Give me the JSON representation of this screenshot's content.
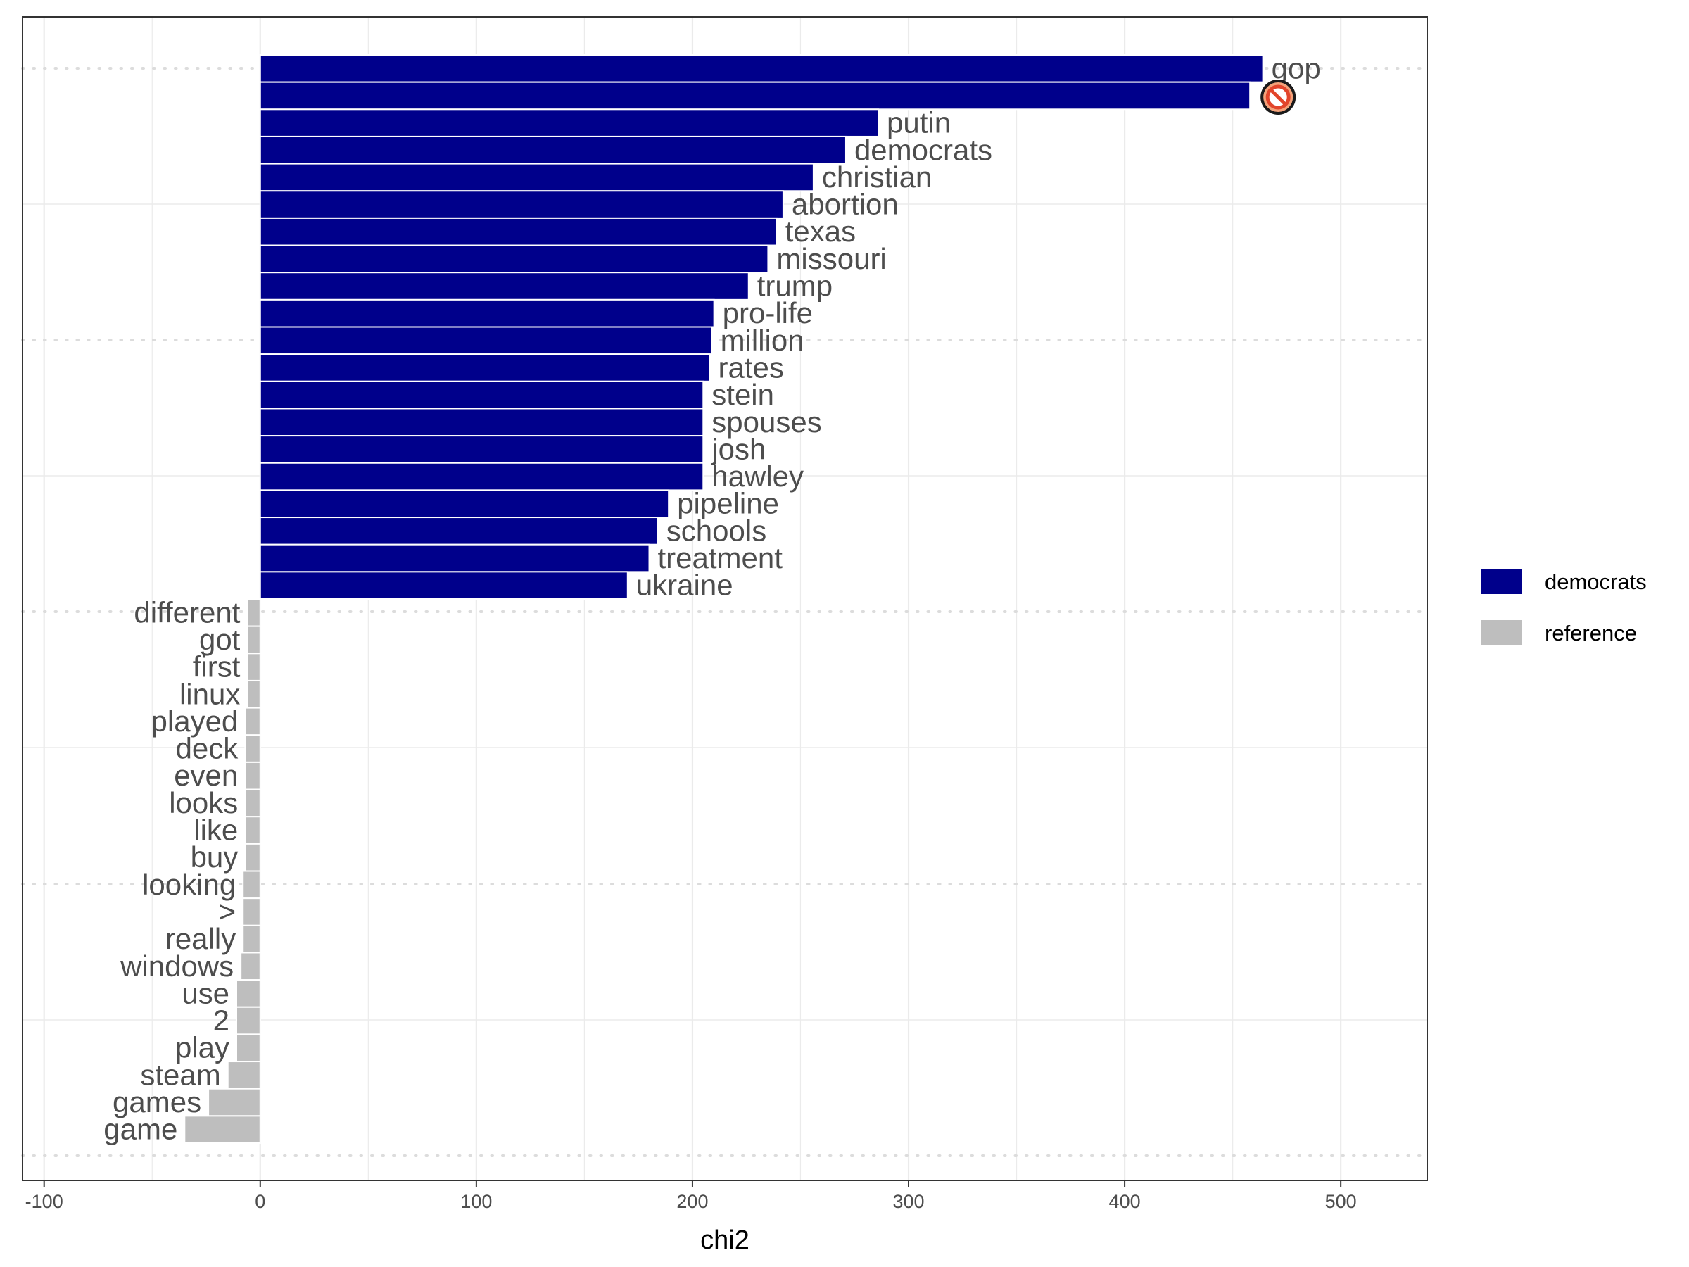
{
  "chart_data": {
    "type": "bar",
    "orientation": "horizontal",
    "xlabel": "chi2",
    "ylabel": "",
    "xlim": [
      -110,
      540
    ],
    "xticks": [
      -100,
      0,
      100,
      200,
      300,
      400,
      500
    ],
    "xtick_labels": [
      "-100",
      "0",
      "100",
      "200",
      "300",
      "400",
      "500"
    ],
    "grid": true,
    "legend_position": "right",
    "colors": {
      "democrats": "#00008B",
      "reference": "#BEBEBE"
    },
    "series": [
      {
        "name": "democrats",
        "color": "#00008B"
      },
      {
        "name": "reference",
        "color": "#BEBEBE"
      }
    ],
    "bars": [
      {
        "term": "gop",
        "value": 464,
        "group": "democrats"
      },
      {
        "term": "",
        "value": 458,
        "group": "democrats",
        "icon": "prohibited-icon"
      },
      {
        "term": "putin",
        "value": 286,
        "group": "democrats"
      },
      {
        "term": "democrats",
        "value": 271,
        "group": "democrats"
      },
      {
        "term": "christian",
        "value": 256,
        "group": "democrats"
      },
      {
        "term": "abortion",
        "value": 242,
        "group": "democrats"
      },
      {
        "term": "texas",
        "value": 239,
        "group": "democrats"
      },
      {
        "term": "missouri",
        "value": 235,
        "group": "democrats"
      },
      {
        "term": "trump",
        "value": 226,
        "group": "democrats"
      },
      {
        "term": "pro-life",
        "value": 210,
        "group": "democrats"
      },
      {
        "term": "million",
        "value": 209,
        "group": "democrats"
      },
      {
        "term": "rates",
        "value": 208,
        "group": "democrats"
      },
      {
        "term": "stein",
        "value": 205,
        "group": "democrats"
      },
      {
        "term": "spouses",
        "value": 205,
        "group": "democrats"
      },
      {
        "term": "josh",
        "value": 205,
        "group": "democrats"
      },
      {
        "term": "hawley",
        "value": 205,
        "group": "democrats"
      },
      {
        "term": "pipeline",
        "value": 189,
        "group": "democrats"
      },
      {
        "term": "schools",
        "value": 184,
        "group": "democrats"
      },
      {
        "term": "treatment",
        "value": 180,
        "group": "democrats"
      },
      {
        "term": "ukraine",
        "value": 170,
        "group": "democrats"
      },
      {
        "term": "different",
        "value": -6,
        "group": "reference"
      },
      {
        "term": "got",
        "value": -6,
        "group": "reference"
      },
      {
        "term": "first",
        "value": -6,
        "group": "reference"
      },
      {
        "term": "linux",
        "value": -6,
        "group": "reference"
      },
      {
        "term": "played",
        "value": -7,
        "group": "reference"
      },
      {
        "term": "deck",
        "value": -7,
        "group": "reference"
      },
      {
        "term": "even",
        "value": -7,
        "group": "reference"
      },
      {
        "term": "looks",
        "value": -7,
        "group": "reference"
      },
      {
        "term": "like",
        "value": -7,
        "group": "reference"
      },
      {
        "term": "buy",
        "value": -7,
        "group": "reference"
      },
      {
        "term": "looking",
        "value": -8,
        "group": "reference"
      },
      {
        "term": ">",
        "value": -8,
        "group": "reference"
      },
      {
        "term": "really",
        "value": -8,
        "group": "reference"
      },
      {
        "term": "windows",
        "value": -9,
        "group": "reference"
      },
      {
        "term": "use",
        "value": -11,
        "group": "reference"
      },
      {
        "term": "2",
        "value": -11,
        "group": "reference"
      },
      {
        "term": "play",
        "value": -11,
        "group": "reference"
      },
      {
        "term": "steam",
        "value": -15,
        "group": "reference"
      },
      {
        "term": "games",
        "value": -24,
        "group": "reference"
      },
      {
        "term": "game",
        "value": -35,
        "group": "reference"
      }
    ]
  }
}
